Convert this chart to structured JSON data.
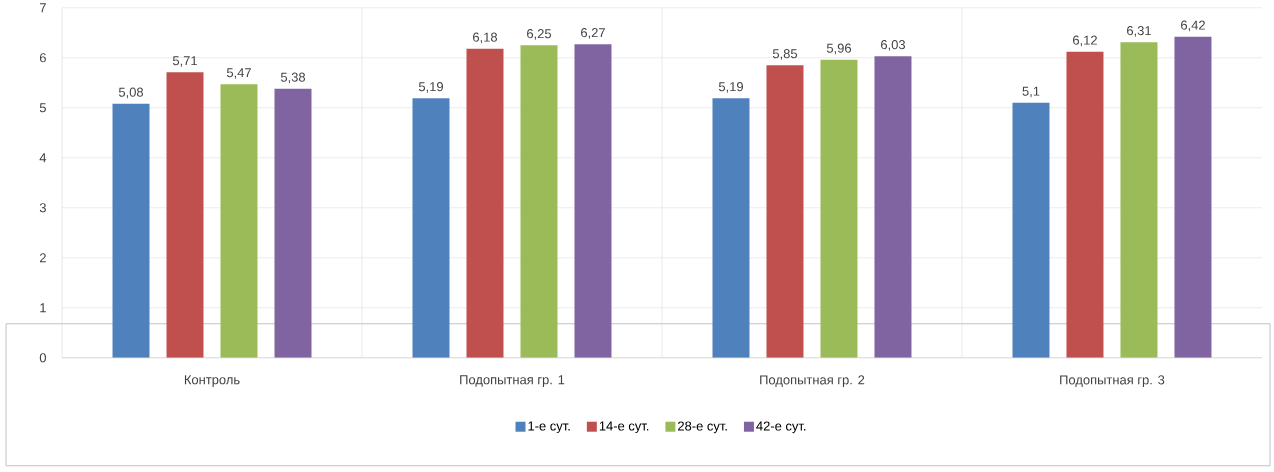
{
  "chart_data": {
    "type": "bar",
    "categories": [
      "Контроль",
      "Подопытная гр. 1",
      "Подопытная гр. 2",
      "Подопытная гр. 3"
    ],
    "series": [
      {
        "name": "1-е сут.",
        "color": "#4f81bd",
        "values": [
          5.08,
          5.19,
          5.19,
          5.1
        ],
        "value_labels": [
          "5,08",
          "5,19",
          "5,19",
          "5,1"
        ]
      },
      {
        "name": "14-е сут.",
        "color": "#c0504d",
        "values": [
          5.71,
          6.18,
          5.85,
          6.12
        ],
        "value_labels": [
          "5,71",
          "6,18",
          "5,85",
          "6,12"
        ]
      },
      {
        "name": "28-е сут.",
        "color": "#9bbb59",
        "values": [
          5.47,
          6.25,
          5.96,
          6.31
        ],
        "value_labels": [
          "5,47",
          "6,25",
          "5,96",
          "6,31"
        ]
      },
      {
        "name": "42-е сут.",
        "color": "#8064a2",
        "values": [
          5.38,
          6.27,
          6.03,
          6.42
        ],
        "value_labels": [
          "5,38",
          "6,27",
          "6,03",
          "6,42"
        ]
      }
    ],
    "ylim": [
      0,
      7
    ],
    "yticks": [
      0,
      1,
      2,
      3,
      4,
      5,
      6,
      7
    ],
    "grid": true,
    "legend": "bottom"
  }
}
